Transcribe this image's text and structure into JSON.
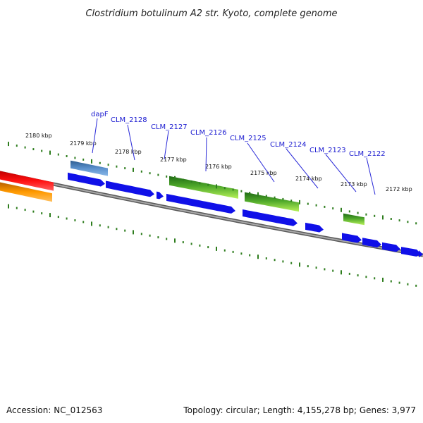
{
  "title": "Clostridium botulinum A2 str. Kyoto, complete genome",
  "footer": {
    "accession": "Accession: NC_012563",
    "summary": "Topology: circular; Length: 4,155,278 bp; Genes: 3,977"
  },
  "colors": {
    "backbone": "#808080",
    "forward_cds": "#1010e8",
    "gene_label": "#1a1ad0",
    "label_line": "#2a2ad8",
    "tick": "#2e7d1e",
    "gc_skew_dark": "#2e7d1e",
    "gc_skew_light": "#a8e84a",
    "rna_gene": "#4a7fc0",
    "red_feature": "#e81010",
    "orange_feature": "#f08c00"
  },
  "ruler": {
    "outer_labels": [
      "2180 kbp",
      "2179 kbp",
      "2178 kbp",
      "2177 kbp",
      "2176 kbp",
      "2175 kbp",
      "2174 kbp",
      "2173 kbp",
      "2172 kbp"
    ]
  },
  "gene_labels": [
    {
      "name": "dapF",
      "icon": "callout-line"
    },
    {
      "name": "CLM_2128",
      "icon": "callout-line"
    },
    {
      "name": "CLM_2127",
      "icon": "callout-line"
    },
    {
      "name": "CLM_2126",
      "icon": "callout-line"
    },
    {
      "name": "CLM_2125",
      "icon": "callout-line"
    },
    {
      "name": "CLM_2124",
      "icon": "callout-line"
    },
    {
      "name": "CLM_2123",
      "icon": "callout-line"
    },
    {
      "name": "CLM_2122",
      "icon": "callout-line"
    }
  ]
}
